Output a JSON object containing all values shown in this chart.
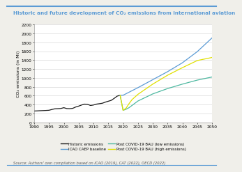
{
  "title": "Historic and future development of CO₂ emissions from international aviation",
  "ylabel": "CO₂ emissions (in Mt)",
  "source": "Source: Authors’ own compilation based on ICAO (2019), CAT (2022), OECD (2022)",
  "xlim": [
    1990,
    2050
  ],
  "ylim": [
    0,
    2200
  ],
  "yticks": [
    0,
    200,
    400,
    600,
    800,
    1000,
    1200,
    1400,
    1600,
    1800,
    2000,
    2200
  ],
  "xticks": [
    1990,
    1995,
    2000,
    2005,
    2010,
    2015,
    2020,
    2025,
    2030,
    2035,
    2040,
    2045,
    2050
  ],
  "historic": {
    "x": [
      1990,
      1991,
      1992,
      1993,
      1994,
      1995,
      1996,
      1997,
      1998,
      1999,
      2000,
      2001,
      2002,
      2003,
      2004,
      2005,
      2006,
      2007,
      2008,
      2009,
      2010,
      2011,
      2012,
      2013,
      2014,
      2015,
      2016,
      2017,
      2018,
      2019
    ],
    "y": [
      255,
      258,
      262,
      265,
      268,
      272,
      290,
      305,
      308,
      312,
      330,
      310,
      308,
      315,
      345,
      365,
      390,
      410,
      405,
      380,
      390,
      410,
      420,
      430,
      455,
      475,
      495,
      540,
      590,
      610
    ],
    "color": "#1a1a1a",
    "label": "Historic emissions",
    "lw": 0.9
  },
  "icao": {
    "x": [
      2019,
      2020,
      2025,
      2030,
      2035,
      2040,
      2045,
      2050
    ],
    "y": [
      610,
      610,
      780,
      960,
      1140,
      1340,
      1590,
      1900
    ],
    "color": "#5b9bd5",
    "label": "ICAO CAEP baseline",
    "lw": 0.9
  },
  "low": {
    "x": [
      2019,
      2020,
      2021,
      2022,
      2023,
      2025,
      2030,
      2035,
      2040,
      2045,
      2050
    ],
    "y": [
      610,
      270,
      295,
      330,
      380,
      480,
      640,
      760,
      860,
      950,
      1020
    ],
    "color": "#4db8a0",
    "label": "Post COVID-19 BAU (low emissions)",
    "lw": 0.9
  },
  "high": {
    "x": [
      2019,
      2020,
      2021,
      2022,
      2023,
      2024,
      2025,
      2030,
      2035,
      2040,
      2045,
      2050
    ],
    "y": [
      610,
      270,
      320,
      420,
      510,
      570,
      630,
      860,
      1060,
      1230,
      1390,
      1460
    ],
    "color": "#e0e000",
    "label": "Post COVID-19 BAU (high emissions)",
    "lw": 0.9
  },
  "background_color": "#f0efea",
  "plot_bg": "#ffffff",
  "title_color": "#5b9bd5",
  "top_line_color": "#5b9bd5",
  "bottom_line_color": "#5b9bd5",
  "title_fontsize": 5.2,
  "label_fontsize": 4.5,
  "tick_fontsize": 4.2,
  "source_fontsize": 3.8,
  "legend_fontsize": 4.0
}
